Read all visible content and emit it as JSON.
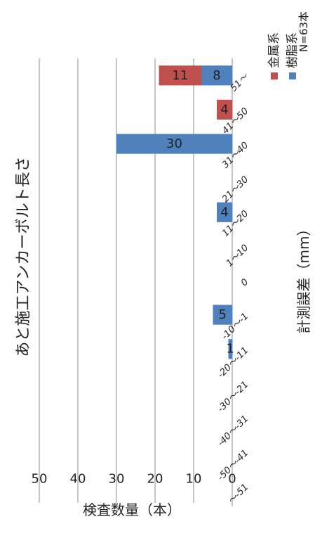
{
  "chart_data": {
    "type": "bar",
    "stacked": true,
    "orientation": "rotated-90-ccw",
    "title": "あと施工アンカーボルト長さ",
    "note": "N=63本",
    "xlabel": "計測誤差（mm）",
    "ylabel": "検査数量（本）",
    "ylim": [
      0,
      50
    ],
    "yticks": [
      0,
      10,
      20,
      30,
      40,
      50
    ],
    "grid": true,
    "legend_position": "top-right",
    "categories": [
      "～-51",
      "-50～-41",
      "-40～-31",
      "-30～-21",
      "-20～-11",
      "-10～-1",
      "0",
      "1～10",
      "11～20",
      "21～30",
      "31～40",
      "41～50",
      "51～"
    ],
    "series": [
      {
        "name": "樹脂系",
        "color": "#4f81bd",
        "values": [
          0,
          0,
          0,
          0,
          1,
          5,
          0,
          0,
          4,
          0,
          30,
          0,
          8
        ]
      },
      {
        "name": "金属系",
        "color": "#c0504d",
        "values": [
          0,
          0,
          0,
          0,
          0,
          0,
          0,
          0,
          0,
          0,
          0,
          4,
          11
        ]
      }
    ]
  }
}
